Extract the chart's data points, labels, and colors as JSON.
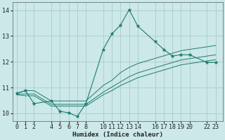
{
  "xlabel": "Humidex (Indice chaleur)",
  "bg_color": "#cce8e8",
  "line_color": "#1e7b6e",
  "grid_color": "#aacccc",
  "xticks": [
    0,
    1,
    2,
    4,
    5,
    6,
    7,
    8,
    10,
    11,
    12,
    13,
    14,
    16,
    17,
    18,
    19,
    20,
    22,
    23
  ],
  "yticks": [
    10,
    11,
    12,
    13,
    14
  ],
  "ylim": [
    9.7,
    14.3
  ],
  "xlim": [
    -0.5,
    23.8
  ],
  "series": [
    {
      "x": [
        0,
        1,
        2,
        4,
        5,
        6,
        7,
        8,
        10,
        11,
        12,
        13,
        14,
        16,
        17,
        18,
        19,
        20,
        22,
        23
      ],
      "y": [
        10.78,
        10.88,
        10.38,
        10.48,
        10.08,
        10.02,
        9.88,
        10.38,
        12.48,
        13.08,
        13.42,
        14.02,
        13.38,
        12.78,
        12.48,
        12.22,
        12.27,
        12.27,
        11.97,
        11.97
      ],
      "marker": true
    },
    {
      "x": [
        0,
        1,
        2,
        4,
        5,
        6,
        7,
        8,
        10,
        11,
        12,
        13,
        14,
        16,
        17,
        18,
        19,
        20,
        22,
        23
      ],
      "y": [
        10.78,
        10.88,
        10.88,
        10.48,
        10.48,
        10.48,
        10.48,
        10.48,
        11.08,
        11.28,
        11.58,
        11.78,
        11.93,
        12.13,
        12.23,
        12.33,
        12.43,
        12.48,
        12.58,
        12.63
      ],
      "marker": false
    },
    {
      "x": [
        0,
        1,
        2,
        4,
        5,
        6,
        7,
        8,
        10,
        11,
        12,
        13,
        14,
        16,
        17,
        18,
        19,
        20,
        22,
        23
      ],
      "y": [
        10.75,
        10.75,
        10.75,
        10.35,
        10.35,
        10.35,
        10.35,
        10.35,
        10.82,
        11.02,
        11.22,
        11.42,
        11.57,
        11.77,
        11.87,
        11.97,
        12.07,
        12.12,
        12.22,
        12.27
      ],
      "marker": false
    },
    {
      "x": [
        0,
        1,
        2,
        4,
        5,
        6,
        7,
        8,
        10,
        11,
        12,
        13,
        14,
        16,
        17,
        18,
        19,
        20,
        22,
        23
      ],
      "y": [
        10.72,
        10.68,
        10.68,
        10.28,
        10.28,
        10.28,
        10.28,
        10.28,
        10.72,
        10.88,
        11.08,
        11.23,
        11.38,
        11.58,
        11.68,
        11.78,
        11.88,
        11.93,
        12.03,
        12.08
      ],
      "marker": false
    }
  ]
}
